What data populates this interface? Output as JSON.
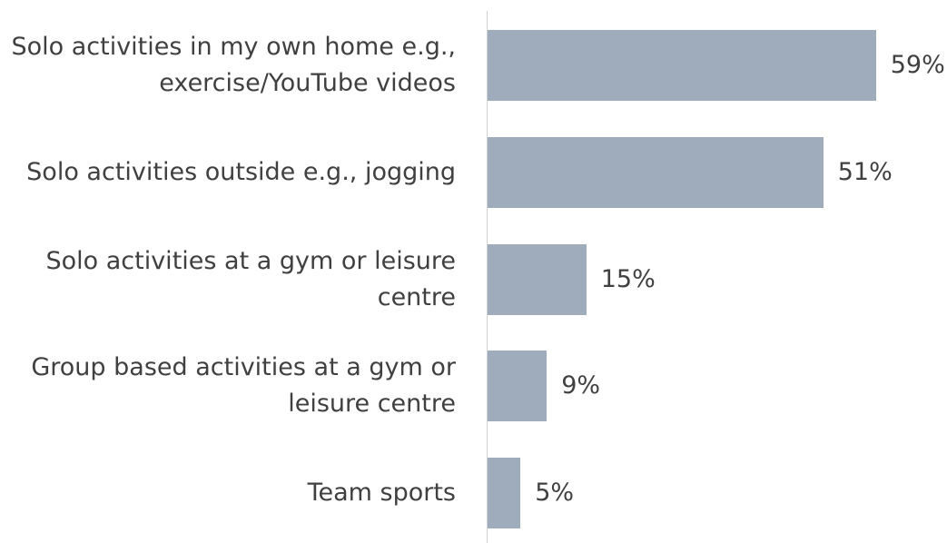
{
  "chart_data": {
    "type": "bar",
    "orientation": "horizontal",
    "categories": [
      "Solo activities in my own home e.g., exercise/YouTube videos",
      "Solo activities outside e.g., jogging",
      "Solo activities at a gym or leisure centre",
      "Group based activities at a gym or leisure centre",
      "Team sports"
    ],
    "values": [
      59,
      51,
      15,
      9,
      5
    ],
    "value_labels": [
      "59%",
      "51%",
      "15%",
      "9%",
      "5%"
    ],
    "color": "#9eacbb"
  }
}
